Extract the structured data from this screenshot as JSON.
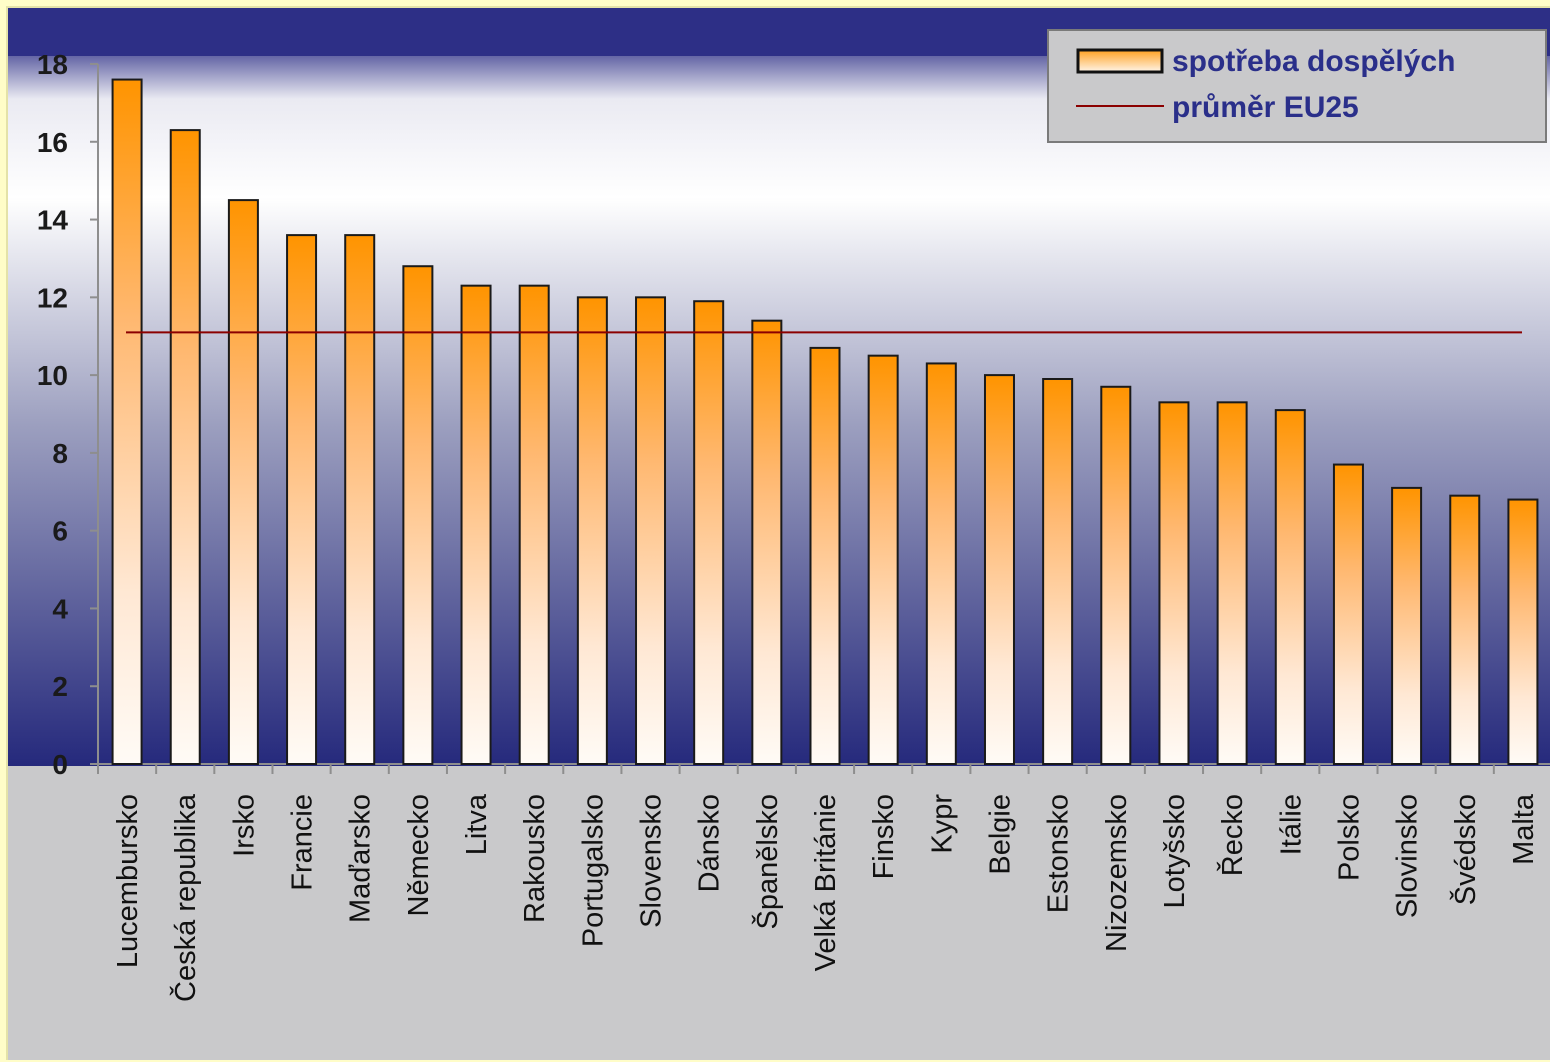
{
  "chart_data": {
    "type": "bar",
    "categories": [
      "Lucembursko",
      "Česká republika",
      "Irsko",
      "Francie",
      "Maďarsko",
      "Německo",
      "Litva",
      "Rakousko",
      "Portugalsko",
      "Slovensko",
      "Dánsko",
      "Španělsko",
      "Velká Británie",
      "Finsko",
      "Kypr",
      "Belgie",
      "Estonsko",
      "Nizozemsko",
      "Lotyšsko",
      "Řecko",
      "Itálie",
      "Polsko",
      "Slovinsko",
      "Švédsko",
      "Malta"
    ],
    "series": [
      {
        "name": "spotřeba dospělých",
        "type": "bar",
        "values": [
          17.6,
          16.3,
          14.5,
          13.6,
          13.6,
          12.8,
          12.3,
          12.3,
          12.0,
          12.0,
          11.9,
          11.4,
          10.7,
          10.5,
          10.3,
          10.0,
          9.9,
          9.7,
          9.3,
          9.3,
          9.1,
          7.7,
          7.1,
          6.9,
          6.8
        ]
      },
      {
        "name": "průměr EU25",
        "type": "line",
        "value": 11.1,
        "color": "#8b0000"
      }
    ],
    "ylim": [
      0,
      18
    ],
    "yticks": [
      0,
      2,
      4,
      6,
      8,
      10,
      12,
      14,
      16,
      18
    ],
    "title": "",
    "xlabel": "",
    "ylabel": "",
    "grid": false,
    "legend": "top-right",
    "colors": {
      "bar_top": "#ff9900",
      "bar_bottom": "#fffaf3",
      "bar_border": "#1a1a1a",
      "plot_top": "#ffffff",
      "plot_bottom": "#2b2f86",
      "average_line": "#8b0000",
      "frame": "#c9c9cb",
      "outer_background": "#fffdc8",
      "legend_text": "#2a2f8a"
    }
  }
}
